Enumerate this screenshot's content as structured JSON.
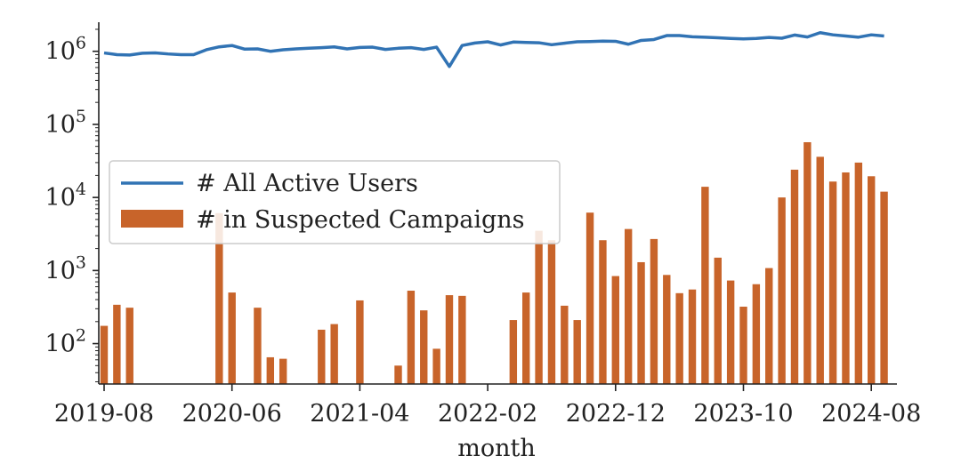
{
  "chart_data": {
    "type": "bar+line",
    "xlabel": "month",
    "ylabel": "",
    "yscale": "log",
    "ylim": [
      28,
      2500000
    ],
    "x_tick_labels": [
      "2019-08",
      "2020-06",
      "2021-04",
      "2022-02",
      "2022-12",
      "2023-10",
      "2024-08"
    ],
    "y_tick_exponents": [
      "2",
      "3",
      "4",
      "5",
      "6"
    ],
    "y_tick_base": "10",
    "months": [
      "2019-08",
      "2019-09",
      "2019-10",
      "2019-11",
      "2019-12",
      "2020-01",
      "2020-02",
      "2020-03",
      "2020-04",
      "2020-05",
      "2020-06",
      "2020-07",
      "2020-08",
      "2020-09",
      "2020-10",
      "2020-11",
      "2020-12",
      "2021-01",
      "2021-02",
      "2021-03",
      "2021-04",
      "2021-05",
      "2021-06",
      "2021-07",
      "2021-08",
      "2021-09",
      "2021-10",
      "2021-11",
      "2021-12",
      "2022-01",
      "2022-02",
      "2022-03",
      "2022-04",
      "2022-05",
      "2022-06",
      "2022-07",
      "2022-08",
      "2022-09",
      "2022-10",
      "2022-11",
      "2022-12",
      "2023-01",
      "2023-02",
      "2023-03",
      "2023-04",
      "2023-05",
      "2023-06",
      "2023-07",
      "2023-08",
      "2023-09",
      "2023-10",
      "2023-11",
      "2023-12",
      "2024-01",
      "2024-02",
      "2024-03",
      "2024-04",
      "2024-05",
      "2024-06",
      "2024-07",
      "2024-08",
      "2024-09"
    ],
    "series": [
      {
        "name": "# All Active Users",
        "kind": "line",
        "color": "#3173b4",
        "values": [
          950000,
          900000,
          890000,
          940000,
          950000,
          920000,
          900000,
          900000,
          1050000,
          1150000,
          1200000,
          1070000,
          1080000,
          1000000,
          1050000,
          1080000,
          1100000,
          1120000,
          1150000,
          1080000,
          1130000,
          1140000,
          1060000,
          1100000,
          1120000,
          1060000,
          1140000,
          620000,
          1200000,
          1300000,
          1350000,
          1220000,
          1340000,
          1320000,
          1310000,
          1230000,
          1290000,
          1350000,
          1360000,
          1380000,
          1370000,
          1250000,
          1410000,
          1450000,
          1640000,
          1640000,
          1580000,
          1560000,
          1530000,
          1500000,
          1480000,
          1500000,
          1550000,
          1510000,
          1670000,
          1570000,
          1800000,
          1680000,
          1620000,
          1560000,
          1680000,
          1620000
        ]
      },
      {
        "name": "# in Suspected Campaigns",
        "kind": "bar",
        "color": "#c8642a",
        "values": [
          175,
          340,
          310,
          null,
          null,
          null,
          null,
          null,
          null,
          6100,
          500,
          null,
          310,
          65,
          62,
          null,
          null,
          155,
          185,
          null,
          390,
          null,
          null,
          50,
          530,
          285,
          85,
          460,
          450,
          null,
          null,
          null,
          210,
          500,
          3500,
          2600,
          330,
          210,
          6200,
          2600,
          840,
          3700,
          1300,
          2700,
          870,
          490,
          550,
          14000,
          1500,
          730,
          320,
          650,
          1080,
          10000,
          24000,
          57000,
          36000,
          16500,
          22000,
          30000,
          19500,
          12000
        ]
      }
    ],
    "grid": false,
    "legend_position": "center-left"
  }
}
